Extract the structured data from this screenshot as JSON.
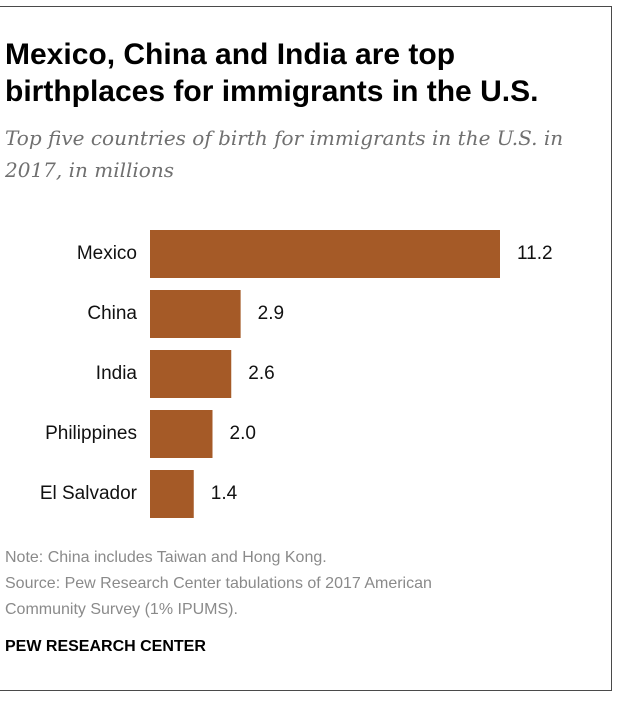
{
  "title": "Mexico, China and India are top birthplaces for immigrants in the U.S.",
  "subtitle": "Top five countries of birth for immigrants in the U.S. in 2017, in millions",
  "note": "Note: China includes Taiwan and Hong Kong.",
  "source_line1": "Source: Pew Research Center tabulations of 2017 American",
  "source_line2": "Community Survey (1% IPUMS).",
  "brand": "PEW RESEARCH CENTER",
  "colors": {
    "bar": "#a55a27",
    "label": "#111111"
  },
  "chart_data": {
    "type": "bar",
    "orientation": "horizontal",
    "categories": [
      "Mexico",
      "China",
      "India",
      "Philippines",
      "El Salvador"
    ],
    "values": [
      11.2,
      2.9,
      2.6,
      2.0,
      1.4
    ],
    "value_labels": [
      "11.2",
      "2.9",
      "2.6",
      "2.0",
      "1.4"
    ],
    "xlim": [
      0,
      11.2
    ],
    "grid": false,
    "legend": "none"
  }
}
